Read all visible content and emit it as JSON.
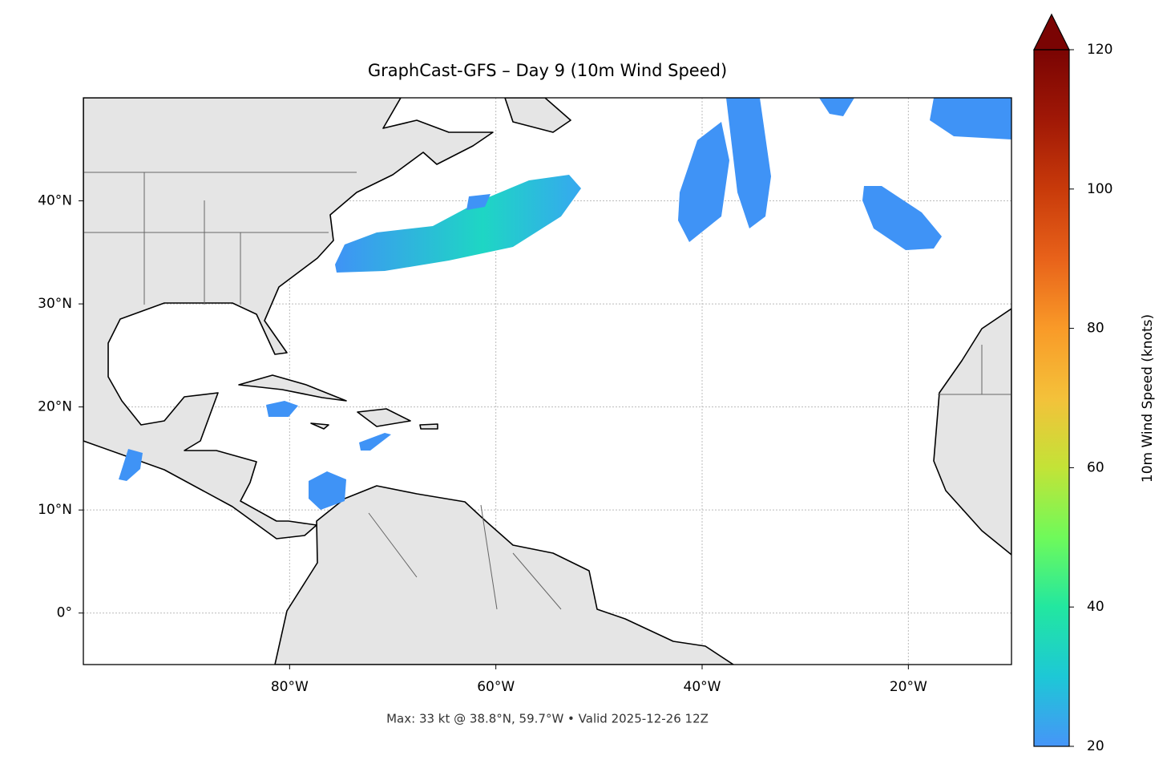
{
  "chart_data": {
    "type": "map",
    "title": "GraphCast-GFS – Day 9 (10m Wind Speed)",
    "caption": "Max: 33 kt @ 38.8°N, 59.7°W • Valid 2025-12-26 12Z",
    "xlim": [
      -100,
      -10
    ],
    "ylim": [
      -5,
      50
    ],
    "xticks": [
      {
        "value": -80,
        "label": "80°W"
      },
      {
        "value": -60,
        "label": "60°W"
      },
      {
        "value": -40,
        "label": "40°W"
      },
      {
        "value": -20,
        "label": "20°W"
      }
    ],
    "yticks": [
      {
        "value": 0,
        "label": "0°"
      },
      {
        "value": 10,
        "label": "10°N"
      },
      {
        "value": 20,
        "label": "20°N"
      },
      {
        "value": 30,
        "label": "30°N"
      },
      {
        "value": 40,
        "label": "40°N"
      }
    ],
    "grid": true,
    "colorbar": {
      "label": "10m Wind Speed (knots)",
      "lim": [
        20,
        120
      ],
      "ticks": [
        20,
        40,
        60,
        80,
        100,
        120
      ],
      "extend": "max",
      "colors": [
        "#4695f8",
        "#1dc8d6",
        "#22e7a0",
        "#6ffa5a",
        "#c3e337",
        "#f4c13a",
        "#f99a28",
        "#e8621a",
        "#c83a0a",
        "#a01806",
        "#7a0403"
      ]
    }
  }
}
